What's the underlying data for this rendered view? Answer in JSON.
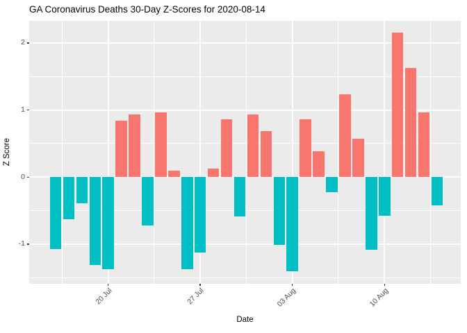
{
  "title": "GA Coronavirus Deaths 30-Day Z-Scores for 2020-08-14",
  "chart_data": {
    "type": "bar",
    "title": "GA Coronavirus Deaths 30-Day Z-Scores for 2020-08-14",
    "xlabel": "Date",
    "ylabel": "Z Score",
    "x": [
      "2020-07-16",
      "2020-07-17",
      "2020-07-18",
      "2020-07-19",
      "2020-07-20",
      "2020-07-21",
      "2020-07-22",
      "2020-07-23",
      "2020-07-24",
      "2020-07-25",
      "2020-07-26",
      "2020-07-27",
      "2020-07-28",
      "2020-07-29",
      "2020-07-30",
      "2020-07-31",
      "2020-08-01",
      "2020-08-02",
      "2020-08-03",
      "2020-08-04",
      "2020-08-05",
      "2020-08-06",
      "2020-08-07",
      "2020-08-08",
      "2020-08-09",
      "2020-08-10",
      "2020-08-11",
      "2020-08-12",
      "2020-08-13",
      "2020-08-14"
    ],
    "values": [
      -1.07,
      -0.63,
      -0.39,
      -1.31,
      -1.37,
      0.84,
      0.93,
      -0.72,
      0.96,
      0.1,
      -1.37,
      -1.12,
      0.13,
      0.86,
      -0.59,
      0.93,
      0.69,
      -1.01,
      -1.4,
      0.86,
      0.39,
      -0.22,
      1.23,
      0.57,
      -1.08,
      -0.58,
      2.15,
      1.63,
      0.96,
      -0.42
    ],
    "x_ticks": [
      {
        "date": "2020-07-20",
        "label": "20 Jul"
      },
      {
        "date": "2020-07-27",
        "label": "27 Jul"
      },
      {
        "date": "2020-08-03",
        "label": "03 Aug"
      },
      {
        "date": "2020-08-10",
        "label": "10 Aug"
      }
    ],
    "y_ticks": [
      -1,
      0,
      1,
      2
    ],
    "ylim": [
      -1.59,
      2.33
    ],
    "grid": {
      "major": true,
      "minor": true
    },
    "legend": "none",
    "colors": {
      "positive_bar": "#F8766D",
      "negative_bar": "#00BFC4",
      "panel_background": "#EBEBEB",
      "gridline": "#FFFFFF",
      "tick_text": "#4D4D4D",
      "title_text": "#000000"
    }
  }
}
